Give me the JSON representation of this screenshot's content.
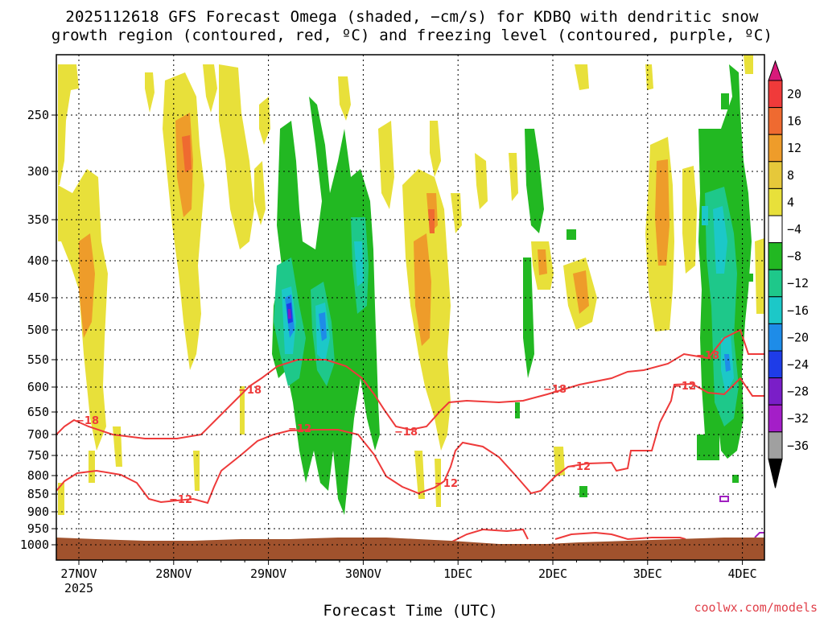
{
  "chart_data": {
    "type": "heatmap",
    "title_line1": "2025112618 GFS Forecast Omega (shaded, −cm/s) for KDBQ with dendritic snow",
    "title_line2": "growth region (contoured, red, ºC) and freezing level (contoured, purple, ºC)",
    "xlabel": "Forecast Time (UTC)",
    "credit": "coolwx.com/models",
    "x_ticks": [
      {
        "label": "27NOV",
        "sub": "2025",
        "day": 0
      },
      {
        "label": "28NOV",
        "sub": "",
        "day": 1
      },
      {
        "label": "29NOV",
        "sub": "",
        "day": 2
      },
      {
        "label": "30NOV",
        "sub": "",
        "day": 3
      },
      {
        "label": "1DEC",
        "sub": "",
        "day": 4
      },
      {
        "label": "2DEC",
        "sub": "",
        "day": 5
      },
      {
        "label": "3DEC",
        "sub": "",
        "day": 6
      },
      {
        "label": "4DEC",
        "sub": "",
        "day": 7
      }
    ],
    "y_ticks": [
      "250",
      "300",
      "350",
      "400",
      "450",
      "500",
      "550",
      "600",
      "650",
      "700",
      "750",
      "800",
      "850",
      "900",
      "950",
      "1000"
    ],
    "y_levels_hpa": [
      250,
      300,
      350,
      400,
      450,
      500,
      550,
      600,
      650,
      700,
      750,
      800,
      850,
      900,
      950,
      1000
    ],
    "colorbar": {
      "labels": [
        "20",
        "16",
        "12",
        "8",
        "4",
        "−4",
        "−8",
        "−12",
        "−16",
        "−20",
        "−24",
        "−28",
        "−32",
        "−36"
      ],
      "colors": [
        "#d81a7a",
        "#f03a3a",
        "#ef6a30",
        "#ee9c2a",
        "#e6c83a",
        "#e8e03a",
        "#ffffff",
        "#22b822",
        "#1ec88a",
        "#1cc8c8",
        "#1e8ce8",
        "#1e3ce8",
        "#7a1ec8",
        "#a41ec8",
        "#a0a0a0",
        "#000000"
      ]
    },
    "contour_labels_red": [
      "−18",
      "−18",
      "−12",
      "−18",
      "−12",
      "−18",
      "−12",
      "−12",
      "−18",
      "−12"
    ],
    "terrain_color": "#a0522d",
    "red_contour_color": "#ee3a3a",
    "purple_contour_color": "#a020c0"
  }
}
